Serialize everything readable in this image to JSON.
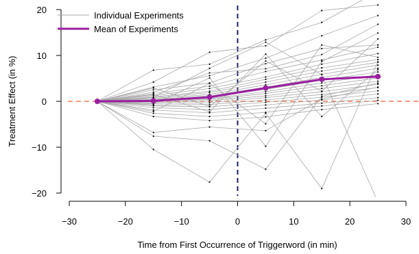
{
  "chart_data": {
    "type": "line",
    "title": "",
    "xlabel": "Time from First Occurrence of Triggerword (in min)",
    "ylabel": "Treatment Effect (in %)",
    "xlim": [
      -30,
      30
    ],
    "ylim": [
      -20,
      20
    ],
    "x_ticks": [
      -30,
      -20,
      -10,
      0,
      10,
      20,
      30
    ],
    "y_ticks": [
      -20,
      -10,
      0,
      10,
      20
    ],
    "x_tick_labels": [
      "−30",
      "−20",
      "−10",
      "0",
      "10",
      "20",
      "30"
    ],
    "y_tick_labels": [
      "−20",
      "−10",
      "0",
      "10",
      "20"
    ],
    "x": [
      -25,
      -15,
      -5,
      5,
      15,
      25
    ],
    "grid": false,
    "legend_position": "top-left",
    "reference_lines": [
      {
        "orientation": "horizontal",
        "value": 0,
        "style": "dashed",
        "color": "#f07850"
      },
      {
        "orientation": "vertical",
        "value": 0,
        "style": "dashed",
        "color": "#1a1a6e"
      }
    ],
    "individual_series_name": "Individual Experiments",
    "individual_color": "#a6a6a6",
    "individual_series": [
      [
        0,
        6.8,
        8.1,
        13.4,
        17.2,
        24.0
      ],
      [
        0,
        4.2,
        10.7,
        12.1,
        19.8,
        21.0
      ],
      [
        0,
        3.1,
        5.6,
        9.4,
        14.3,
        18.7
      ],
      [
        0,
        2.5,
        4.0,
        8.2,
        11.5,
        12.3
      ],
      [
        0,
        2.0,
        6.2,
        7.1,
        10.2,
        16.8
      ],
      [
        0,
        1.7,
        3.3,
        6.5,
        9.0,
        11.8
      ],
      [
        0,
        1.3,
        2.8,
        5.3,
        8.1,
        10.4
      ],
      [
        0,
        1.0,
        2.2,
        4.8,
        7.3,
        9.1
      ],
      [
        0,
        0.8,
        1.9,
        4.2,
        6.6,
        8.5
      ],
      [
        0,
        0.6,
        1.5,
        3.6,
        5.9,
        7.9
      ],
      [
        0,
        0.4,
        1.2,
        3.1,
        5.2,
        7.2
      ],
      [
        0,
        0.3,
        0.9,
        2.6,
        4.6,
        6.4
      ],
      [
        0,
        0.1,
        0.6,
        2.1,
        4.0,
        5.8
      ],
      [
        0,
        -0.1,
        0.4,
        1.7,
        3.4,
        5.1
      ],
      [
        0,
        -0.3,
        0.1,
        1.2,
        2.8,
        4.4
      ],
      [
        0,
        -0.5,
        -0.3,
        0.8,
        2.1,
        3.7
      ],
      [
        0,
        -0.8,
        -0.7,
        0.3,
        1.5,
        3.0
      ],
      [
        0,
        -1.0,
        -1.2,
        -0.2,
        0.9,
        2.3
      ],
      [
        0,
        -1.4,
        -1.8,
        -0.8,
        0.3,
        1.6
      ],
      [
        0,
        -1.9,
        -2.5,
        -1.5,
        -0.4,
        0.8
      ],
      [
        0,
        -2.6,
        -3.3,
        -2.4,
        -1.0,
        0.2
      ],
      [
        0,
        -3.3,
        -4.2,
        -3.4,
        -1.8,
        -0.5
      ],
      [
        0,
        -6.8,
        -5.6,
        -6.4,
        0.5,
        3.1
      ],
      [
        0,
        -7.6,
        -8.6,
        -14.8,
        1.1,
        4.0
      ],
      [
        0,
        -10.5,
        -17.6,
        -2.6,
        -19.0,
        8.6
      ],
      [
        0,
        0.9,
        7.2,
        12.9,
        5.8,
        -22.0
      ],
      [
        0,
        2.9,
        -1.1,
        8.8,
        2.2,
        13.6
      ],
      [
        0,
        -2.2,
        3.9,
        -4.9,
        12.3,
        9.6
      ],
      [
        0,
        1.5,
        -2.3,
        10.3,
        -3.3,
        6.9
      ],
      [
        0,
        -0.6,
        5.1,
        -9.8,
        8.7,
        14.9
      ]
    ],
    "series": [
      {
        "name": "Mean of Experiments",
        "color": "#9b1fa0",
        "values": [
          0,
          0.1,
          0.9,
          2.9,
          4.8,
          5.4
        ]
      }
    ],
    "legend": [
      {
        "label": "Individual Experiments",
        "color": "#a6a6a6"
      },
      {
        "label": "Mean of Experiments",
        "color": "#9b1fa0"
      }
    ]
  }
}
